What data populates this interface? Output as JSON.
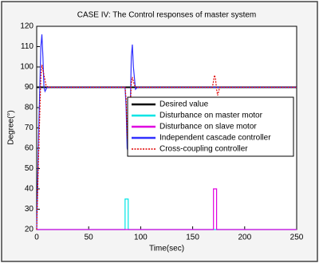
{
  "chart_data": {
    "type": "line",
    "title": "CASE IV: The Control responses of master system",
    "x_label": "Time(sec)",
    "y_label": "Degree(°)",
    "xlim": [
      0,
      250
    ],
    "ylim": [
      20,
      120
    ],
    "xticks": [
      0,
      50,
      100,
      150,
      200,
      250
    ],
    "yticks": [
      20,
      30,
      40,
      50,
      60,
      70,
      80,
      90,
      100,
      110,
      120
    ],
    "grid": false,
    "legend": "right",
    "series": [
      {
        "name": "Desired value",
        "color": "#000000",
        "style": "solid",
        "x": [
          0,
          250
        ],
        "values": [
          90,
          90
        ]
      },
      {
        "name": "Disturbance on master motor",
        "color": "#00e5e5",
        "style": "solid",
        "x": [
          0,
          85,
          85,
          88,
          88,
          250
        ],
        "values": [
          20,
          20,
          35,
          35,
          20,
          20
        ]
      },
      {
        "name": "Disturbance on slave motor",
        "color": "#e000e0",
        "style": "solid",
        "x": [
          0,
          170,
          170,
          173,
          173,
          250
        ],
        "values": [
          20,
          20,
          40,
          40,
          20,
          20
        ]
      },
      {
        "name": "Independent cascade controller",
        "color": "#3030ff",
        "style": "solid",
        "x": [
          0,
          2,
          4,
          5,
          6,
          7,
          8,
          10,
          85,
          86,
          87,
          88,
          90,
          91,
          92,
          93,
          95,
          97,
          250
        ],
        "values": [
          20,
          70,
          110,
          116,
          105,
          90,
          88,
          90,
          90,
          80,
          60,
          58,
          80,
          105,
          111,
          100,
          89,
          90,
          90
        ]
      },
      {
        "name": "Cross-coupling controller",
        "color": "#e00000",
        "style": "dotted",
        "x": [
          0,
          2,
          4,
          5,
          7,
          9,
          11,
          85,
          86,
          87,
          88,
          90,
          91,
          92,
          94,
          96,
          169,
          170,
          171,
          172,
          173,
          174,
          176,
          250
        ],
        "values": [
          20,
          60,
          95,
          101,
          96,
          91,
          90,
          90,
          84,
          66,
          61,
          80,
          92,
          95,
          91,
          90,
          90,
          93,
          96,
          94,
          89,
          86,
          90,
          90
        ]
      }
    ]
  }
}
